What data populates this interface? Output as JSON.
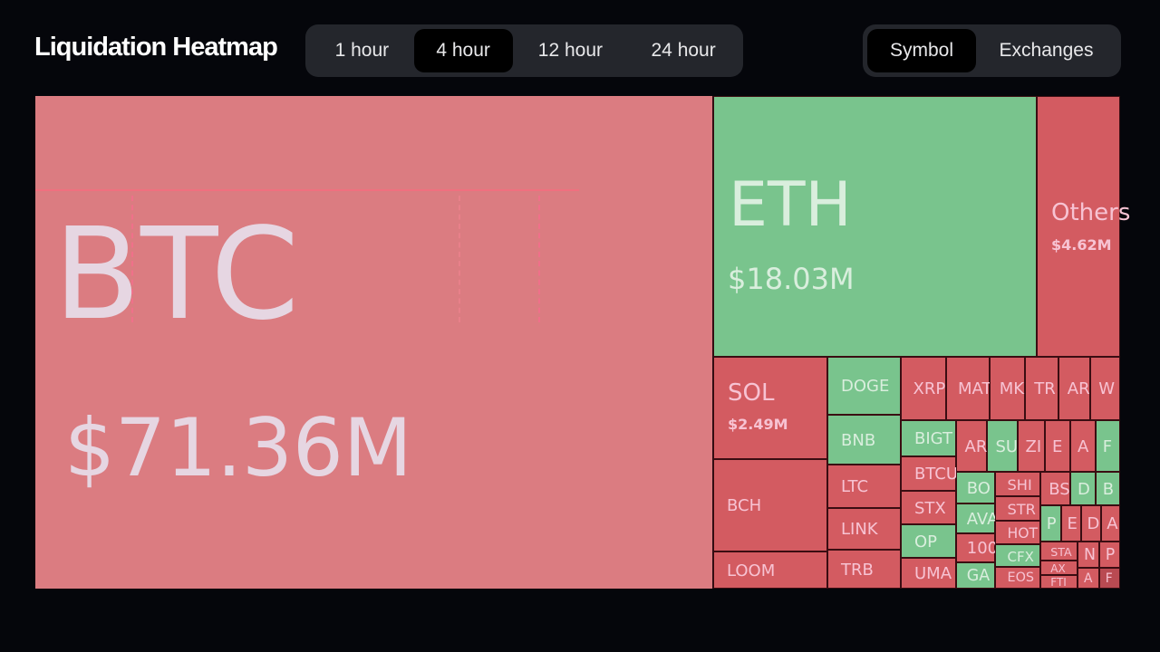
{
  "header": {
    "title": "Liquidation Heatmap",
    "timeframes": [
      "1 hour",
      "4 hour",
      "12 hour",
      "24 hour"
    ],
    "active_timeframe": "4 hour",
    "views": [
      "Symbol",
      "Exchanges"
    ],
    "active_view": "Symbol"
  },
  "colors": {
    "loss": "#d35b61",
    "gain": "#79c48d",
    "btc": "#db7c81",
    "background": "#05060b"
  },
  "tiles": {
    "btc": {
      "symbol": "BTC",
      "value": "$71.36M",
      "color": "red"
    },
    "eth": {
      "symbol": "ETH",
      "value": "$18.03M",
      "color": "green"
    },
    "others": {
      "symbol": "Others",
      "value": "$4.62M",
      "color": "red"
    },
    "sol": {
      "symbol": "SOL",
      "value": "$2.49M",
      "color": "red"
    },
    "small": [
      {
        "symbol": "BCH",
        "color": "red"
      },
      {
        "symbol": "LOOM",
        "color": "red"
      },
      {
        "symbol": "DOGE",
        "color": "green"
      },
      {
        "symbol": "BNB",
        "color": "green"
      },
      {
        "symbol": "LTC",
        "color": "red"
      },
      {
        "symbol": "LINK",
        "color": "red"
      },
      {
        "symbol": "TRB",
        "color": "red"
      },
      {
        "symbol": "XRP",
        "color": "red"
      },
      {
        "symbol": "MAT",
        "color": "red"
      },
      {
        "symbol": "MK",
        "color": "red"
      },
      {
        "symbol": "TR",
        "color": "red"
      },
      {
        "symbol": "AR",
        "color": "red"
      },
      {
        "symbol": "W",
        "color": "red"
      },
      {
        "symbol": "BIGT",
        "color": "green"
      },
      {
        "symbol": "BTCU",
        "color": "red"
      },
      {
        "symbol": "STX",
        "color": "red"
      },
      {
        "symbol": "OP",
        "color": "green"
      },
      {
        "symbol": "UMA",
        "color": "red"
      },
      {
        "symbol": "AR",
        "color": "red"
      },
      {
        "symbol": "SU",
        "color": "green"
      },
      {
        "symbol": "ZI",
        "color": "red"
      },
      {
        "symbol": "E",
        "color": "red"
      },
      {
        "symbol": "A",
        "color": "red"
      },
      {
        "symbol": "F",
        "color": "green"
      },
      {
        "symbol": "BO",
        "color": "green"
      },
      {
        "symbol": "AVA",
        "color": "green"
      },
      {
        "symbol": "100",
        "color": "red"
      },
      {
        "symbol": "GA",
        "color": "green"
      },
      {
        "symbol": "SHI",
        "color": "red"
      },
      {
        "symbol": "STR",
        "color": "red"
      },
      {
        "symbol": "HOT",
        "color": "red"
      },
      {
        "symbol": "CFX",
        "color": "green"
      },
      {
        "symbol": "EOS",
        "color": "red"
      },
      {
        "symbol": "BS",
        "color": "red"
      },
      {
        "symbol": "D",
        "color": "green"
      },
      {
        "symbol": "B",
        "color": "green"
      },
      {
        "symbol": "P",
        "color": "green"
      },
      {
        "symbol": "E",
        "color": "red"
      },
      {
        "symbol": "D",
        "color": "red"
      },
      {
        "symbol": "A",
        "color": "red"
      },
      {
        "symbol": "STA",
        "color": "red"
      },
      {
        "symbol": "AX",
        "color": "red"
      },
      {
        "symbol": "FTI",
        "color": "red"
      },
      {
        "symbol": "N",
        "color": "red"
      },
      {
        "symbol": "P",
        "color": "red"
      },
      {
        "symbol": "A",
        "color": "red"
      },
      {
        "symbol": "F",
        "color": "red"
      }
    ]
  }
}
